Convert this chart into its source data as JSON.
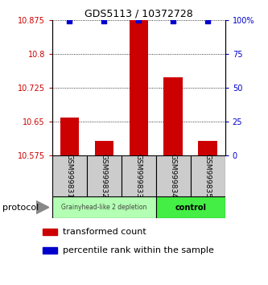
{
  "title": "GDS5113 / 10372728",
  "samples": [
    "GSM999831",
    "GSM999832",
    "GSM999833",
    "GSM999834",
    "GSM999835"
  ],
  "bar_values": [
    10.658,
    10.607,
    10.875,
    10.748,
    10.607
  ],
  "bar_color": "#cc0000",
  "bar_bottom": 10.575,
  "percentile_values": [
    99,
    99,
    100,
    99,
    99
  ],
  "percentile_color": "#0000cc",
  "ylim_left": [
    10.575,
    10.875
  ],
  "yticks_left": [
    10.575,
    10.65,
    10.725,
    10.8,
    10.875
  ],
  "ytick_labels_left": [
    "10.575",
    "10.65",
    "10.725",
    "10.8",
    "10.875"
  ],
  "ylim_right": [
    0,
    100
  ],
  "yticks_right": [
    0,
    25,
    50,
    75,
    100
  ],
  "ytick_labels_right": [
    "0",
    "25",
    "50",
    "75",
    "100%"
  ],
  "group1_label": "Grainyhead-like 2 depletion",
  "group2_label": "control",
  "group1_color": "#b3ffb3",
  "group2_color": "#44ee44",
  "protocol_label": "protocol",
  "legend_bar_label": "transformed count",
  "legend_dot_label": "percentile rank within the sample",
  "ylabel_left_color": "#cc0000",
  "ylabel_right_color": "#0000cc",
  "sample_box_color": "#cccccc",
  "title_fontsize": 9,
  "tick_fontsize": 7,
  "legend_fontsize": 8
}
